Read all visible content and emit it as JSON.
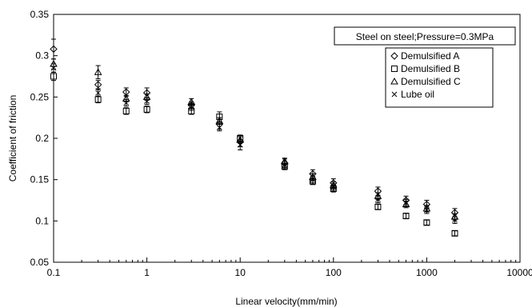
{
  "chart_data": {
    "type": "scatter",
    "title": "",
    "annotation": "Steel on steel;Pressure=0.3MPa",
    "xlabel": "Linear velocity(mm/min)",
    "ylabel": "Coefficient of friction",
    "x_scale": "log",
    "xlim": [
      0.1,
      10000
    ],
    "ylim": [
      0.05,
      0.35
    ],
    "x_ticks": [
      "0.1",
      "1",
      "10",
      "100",
      "1000",
      "10000"
    ],
    "y_ticks": [
      "0.05",
      "0.1",
      "0.15",
      "0.2",
      "0.25",
      "0.3",
      "0.35"
    ],
    "grid": false,
    "legend_position": "top-right",
    "series": [
      {
        "name": "Demulsified A",
        "marker": "diamond",
        "points": [
          [
            0.1,
            0.308
          ],
          [
            0.3,
            0.265
          ],
          [
            0.6,
            0.256
          ],
          [
            1,
            0.255
          ],
          [
            3,
            0.24
          ],
          [
            6,
            0.217
          ],
          [
            10,
            0.196
          ],
          [
            30,
            0.17
          ],
          [
            60,
            0.157
          ],
          [
            100,
            0.146
          ],
          [
            300,
            0.136
          ],
          [
            600,
            0.125
          ],
          [
            1000,
            0.12
          ],
          [
            2000,
            0.11
          ]
        ],
        "errors": [
          0.012,
          0.005,
          0.005,
          0.006,
          0.004,
          0.006,
          0.006,
          0.005,
          0.005,
          0.005,
          0.005,
          0.005,
          0.005,
          0.005
        ]
      },
      {
        "name": "Demulsified B",
        "marker": "square",
        "points": [
          [
            0.1,
            0.275
          ],
          [
            0.3,
            0.247
          ],
          [
            0.6,
            0.233
          ],
          [
            1,
            0.235
          ],
          [
            3,
            0.233
          ],
          [
            6,
            0.226
          ],
          [
            10,
            0.2
          ],
          [
            30,
            0.166
          ],
          [
            60,
            0.148
          ],
          [
            100,
            0.139
          ],
          [
            300,
            0.117
          ],
          [
            600,
            0.106
          ],
          [
            1000,
            0.098
          ],
          [
            2000,
            0.085
          ]
        ],
        "errors": [
          0.005,
          0.004,
          0.004,
          0.004,
          0.004,
          0.006,
          0.004,
          0.004,
          0.004,
          0.004,
          0.003,
          0.003,
          0.003,
          0.003
        ]
      },
      {
        "name": "Demulsified C",
        "marker": "triangle",
        "points": [
          [
            0.1,
            0.29
          ],
          [
            0.3,
            0.28
          ],
          [
            0.6,
            0.248
          ],
          [
            1,
            0.25
          ],
          [
            3,
            0.244
          ],
          [
            6,
            0.221
          ],
          [
            10,
            0.198
          ],
          [
            30,
            0.172
          ],
          [
            60,
            0.153
          ],
          [
            100,
            0.143
          ],
          [
            300,
            0.13
          ],
          [
            600,
            0.12
          ],
          [
            1000,
            0.115
          ],
          [
            2000,
            0.105
          ]
        ],
        "errors": [
          0.006,
          0.008,
          0.004,
          0.004,
          0.004,
          0.004,
          0.004,
          0.004,
          0.004,
          0.004,
          0.004,
          0.004,
          0.004,
          0.004
        ]
      },
      {
        "name": "Lube oil",
        "marker": "x",
        "points": [
          [
            0.1,
            0.285
          ],
          [
            0.3,
            0.255
          ],
          [
            0.6,
            0.243
          ],
          [
            1,
            0.245
          ],
          [
            3,
            0.238
          ],
          [
            6,
            0.213
          ],
          [
            10,
            0.192
          ],
          [
            30,
            0.168
          ],
          [
            60,
            0.15
          ],
          [
            100,
            0.141
          ],
          [
            300,
            0.126
          ],
          [
            600,
            0.122
          ],
          [
            1000,
            0.113
          ],
          [
            2000,
            0.101
          ]
        ],
        "errors": [
          0.005,
          0.004,
          0.004,
          0.004,
          0.004,
          0.004,
          0.006,
          0.004,
          0.004,
          0.004,
          0.004,
          0.004,
          0.004,
          0.004
        ]
      }
    ]
  }
}
